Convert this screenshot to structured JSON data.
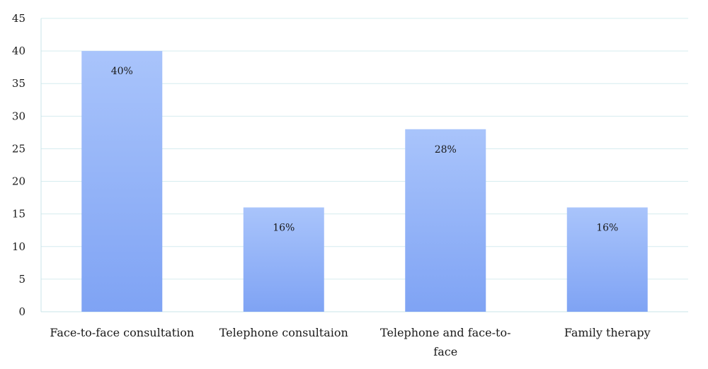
{
  "chart_data": {
    "type": "bar",
    "categories": [
      [
        "Face-to-face consultation"
      ],
      [
        "Telephone consultaion"
      ],
      [
        "Telephone and face-to-",
        "face"
      ],
      [
        "Family therapy"
      ]
    ],
    "values": [
      40,
      16,
      28,
      16
    ],
    "data_labels": [
      "40%",
      "16%",
      "28%",
      "16%"
    ],
    "title": "",
    "xlabel": "",
    "ylabel": "",
    "ylim": [
      0,
      45
    ],
    "yticks": [
      0,
      5,
      10,
      15,
      20,
      25,
      30,
      35,
      40,
      45
    ],
    "grid": true,
    "legend": "none",
    "colors": {
      "bar_top": "#a9c4fb",
      "bar_bottom": "#7fa3f4",
      "grid": "#d6ecef",
      "axis": "#c9e4e8"
    }
  }
}
